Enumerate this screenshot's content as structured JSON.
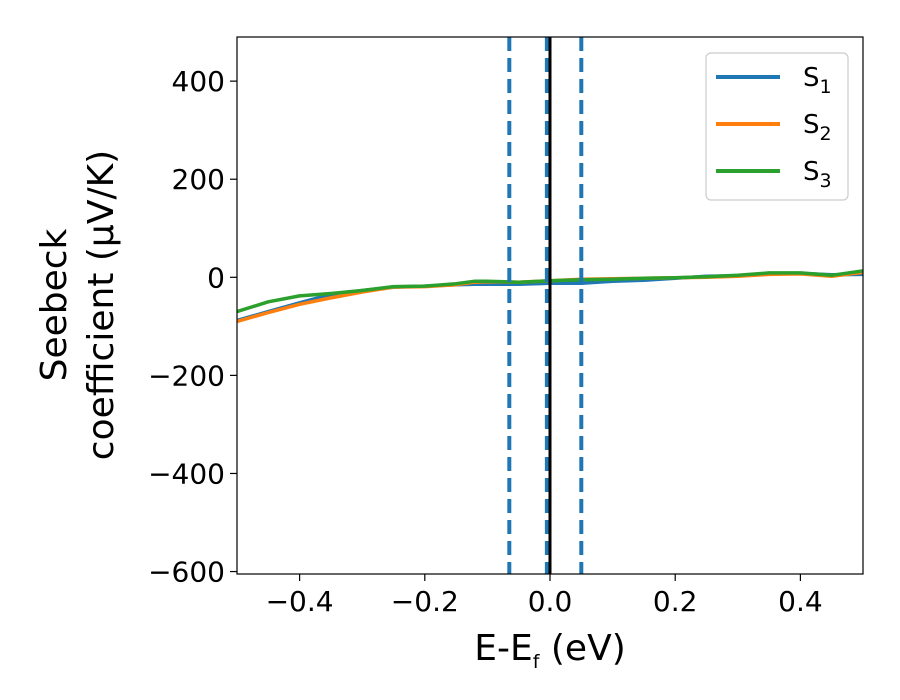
{
  "chart_data": {
    "type": "line",
    "xlabel": {
      "main": "E-E",
      "sub": "f",
      "unit": " (eV)"
    },
    "ylabel": {
      "line1": "Seebeck",
      "line2": "coefficient  (μV/K)"
    },
    "xlim": [
      -0.5,
      0.5
    ],
    "ylim": [
      -605,
      490
    ],
    "xticks": [
      {
        "value": -0.4,
        "label": "−0.4"
      },
      {
        "value": -0.2,
        "label": "−0.2"
      },
      {
        "value": 0.0,
        "label": "0.0"
      },
      {
        "value": 0.2,
        "label": "0.2"
      },
      {
        "value": 0.4,
        "label": "0.4"
      }
    ],
    "yticks": [
      {
        "value": 400,
        "label": "400"
      },
      {
        "value": 200,
        "label": "200"
      },
      {
        "value": 0,
        "label": "0"
      },
      {
        "value": -200,
        "label": "−200"
      },
      {
        "value": -400,
        "label": "−400"
      },
      {
        "value": -600,
        "label": "−600"
      }
    ],
    "grid": false,
    "legend_position": "top-right",
    "x": [
      -0.5,
      -0.45,
      -0.4,
      -0.35,
      -0.3,
      -0.25,
      -0.2,
      -0.15,
      -0.12,
      -0.1,
      -0.05,
      0.0,
      0.05,
      0.1,
      0.15,
      0.2,
      0.25,
      0.3,
      0.35,
      0.4,
      0.45,
      0.5
    ],
    "series": [
      {
        "name": "S",
        "sub": "1",
        "color": "#1f77b4",
        "values": [
          -88,
          -70,
          -52,
          -35,
          -27,
          -20,
          -18,
          -15,
          -14,
          -14,
          -14,
          -12,
          -12,
          -8,
          -6,
          -2,
          2,
          3,
          8,
          8,
          5,
          6
        ]
      },
      {
        "name": "S",
        "sub": "2",
        "color": "#ff7f0e",
        "values": [
          -90,
          -72,
          -55,
          -42,
          -30,
          -20,
          -19,
          -15,
          -10,
          -9,
          -10,
          -7,
          -4,
          -3,
          -2,
          -1,
          0,
          2,
          6,
          7,
          2,
          10
        ]
      },
      {
        "name": "S",
        "sub": "3",
        "color": "#2ca02c",
        "values": [
          -70,
          -50,
          -38,
          -33,
          -27,
          -19,
          -18,
          -13,
          -8,
          -8,
          -10,
          -7,
          -5,
          -4,
          -2,
          -1,
          1,
          4,
          9,
          9,
          4,
          13
        ]
      }
    ],
    "vertical_lines": [
      {
        "x": -0.065,
        "style": "dashed",
        "color": "#1f77b4"
      },
      {
        "x": -0.005,
        "style": "dashed",
        "color": "#1f77b4"
      },
      {
        "x": 0.05,
        "style": "dashed",
        "color": "#1f77b4"
      },
      {
        "x": 0.0,
        "style": "solid",
        "color": "#000000"
      }
    ]
  }
}
